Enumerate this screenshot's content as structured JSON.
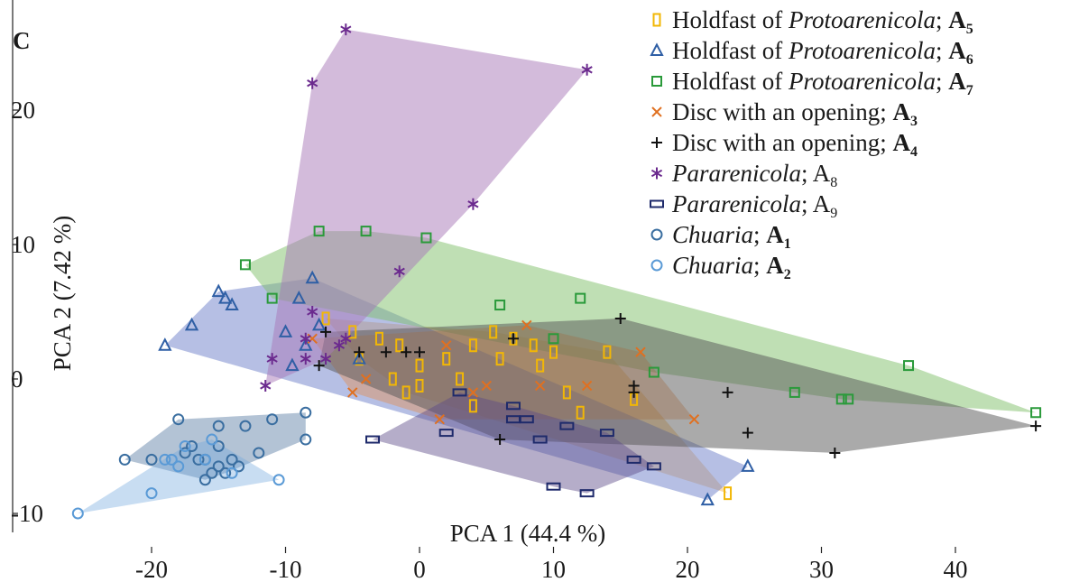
{
  "panel_label": "C",
  "chart_data": {
    "type": "scatter",
    "xlabel": "PCA 1 (44.4 %)",
    "ylabel": "PCA 2 (7.42 %)",
    "xlim": [
      -30,
      48
    ],
    "ylim": [
      -12,
      28
    ],
    "xticks": [
      -20,
      -10,
      0,
      10,
      20,
      30,
      40
    ],
    "yticks": [
      -10,
      0,
      10,
      20
    ],
    "grid": false,
    "legend_position": "top-right",
    "series": [
      {
        "id": "A5",
        "marker": "tall-rect",
        "color": "#f2b705",
        "label_parts": [
          {
            "t": "Holdfast of "
          },
          {
            "t": "Protoarenicola",
            "i": true
          },
          {
            "t": "; "
          },
          {
            "t": "A",
            "b": true
          },
          {
            "t": "5",
            "sub": true,
            "b": true
          }
        ],
        "hull_fill": "#f2a93b",
        "hull_opacity": 0.42,
        "points": [
          [
            -7,
            4.5
          ],
          [
            -5,
            3.5
          ],
          [
            -4.5,
            1.5
          ],
          [
            -3,
            3
          ],
          [
            -2,
            0
          ],
          [
            -1.5,
            2.5
          ],
          [
            -1,
            -1
          ],
          [
            0,
            1
          ],
          [
            0,
            -0.5
          ],
          [
            2,
            1.5
          ],
          [
            3,
            0
          ],
          [
            4,
            2.5
          ],
          [
            5.5,
            3.5
          ],
          [
            6,
            1.5
          ],
          [
            7,
            3
          ],
          [
            8.5,
            2.5
          ],
          [
            4,
            -2
          ],
          [
            9,
            1
          ],
          [
            10,
            2
          ],
          [
            11,
            -1
          ],
          [
            12,
            -2.5
          ],
          [
            16,
            -1.5
          ],
          [
            23,
            -8.5
          ],
          [
            14,
            2
          ]
        ]
      },
      {
        "id": "A6",
        "marker": "triangle",
        "color": "#2f5fa5",
        "label_parts": [
          {
            "t": "Holdfast of "
          },
          {
            "t": "Protoarenicola",
            "i": true
          },
          {
            "t": "; "
          },
          {
            "t": "A",
            "b": true
          },
          {
            "t": "6",
            "sub": true,
            "b": true
          }
        ],
        "hull_fill": "#6d7fc9",
        "hull_opacity": 0.5,
        "points": [
          [
            -19,
            2.5
          ],
          [
            -17,
            4
          ],
          [
            -15,
            6.5
          ],
          [
            -14.5,
            6
          ],
          [
            -14,
            5.5
          ],
          [
            -9,
            6
          ],
          [
            -8,
            7.5
          ],
          [
            -10,
            3.5
          ],
          [
            -9.5,
            1
          ],
          [
            -8.5,
            2.5
          ],
          [
            -7.5,
            4
          ],
          [
            -4.5,
            1.5
          ],
          [
            21.5,
            -9
          ],
          [
            24.5,
            -6.5
          ]
        ]
      },
      {
        "id": "A7",
        "marker": "square",
        "color": "#2a9a3a",
        "label_parts": [
          {
            "t": "Holdfast of "
          },
          {
            "t": "Protoarenicola",
            "i": true
          },
          {
            "t": "; "
          },
          {
            "t": "A",
            "b": true
          },
          {
            "t": "7",
            "sub": true,
            "b": true
          }
        ],
        "hull_fill": "#7fbf6a",
        "hull_opacity": 0.5,
        "points": [
          [
            -13,
            8.5
          ],
          [
            -11,
            6
          ],
          [
            -7.5,
            11
          ],
          [
            -4,
            11
          ],
          [
            0.5,
            10.5
          ],
          [
            6,
            5.5
          ],
          [
            10,
            3
          ],
          [
            12,
            6
          ],
          [
            17.5,
            0.5
          ],
          [
            28,
            -1
          ],
          [
            31.5,
            -1.5
          ],
          [
            32,
            -1.5
          ],
          [
            36.5,
            1
          ],
          [
            46,
            -2.5
          ]
        ]
      },
      {
        "id": "A3",
        "marker": "x",
        "color": "#e07020",
        "label_parts": [
          {
            "t": "Disc with an opening; "
          },
          {
            "t": "A",
            "b": true
          },
          {
            "t": "3",
            "sub": true,
            "b": true
          }
        ],
        "hull_fill": "#e8853a",
        "hull_opacity": 0.38,
        "points": [
          [
            -8,
            3
          ],
          [
            -5,
            -1
          ],
          [
            -4,
            0
          ],
          [
            1.5,
            -3
          ],
          [
            2,
            2.5
          ],
          [
            4,
            -1
          ],
          [
            5,
            -0.5
          ],
          [
            8,
            4
          ],
          [
            9,
            -0.5
          ],
          [
            12.5,
            -0.5
          ],
          [
            16.5,
            2
          ],
          [
            20.5,
            -3
          ]
        ]
      },
      {
        "id": "A4",
        "marker": "plus",
        "color": "#111111",
        "label_parts": [
          {
            "t": "Disc with an opening; "
          },
          {
            "t": "A",
            "b": true
          },
          {
            "t": "4",
            "sub": true,
            "b": true
          }
        ],
        "hull_fill": "#555555",
        "hull_opacity": 0.5,
        "points": [
          [
            -7.5,
            1
          ],
          [
            -7,
            3.5
          ],
          [
            -4.5,
            2
          ],
          [
            -2.5,
            2
          ],
          [
            -1,
            2
          ],
          [
            0,
            2
          ],
          [
            6,
            -4.5
          ],
          [
            7,
            3
          ],
          [
            15,
            4.5
          ],
          [
            16,
            -0.5
          ],
          [
            16,
            -1
          ],
          [
            23,
            -1
          ],
          [
            24.5,
            -4
          ],
          [
            31,
            -5.5
          ],
          [
            46,
            -3.5
          ]
        ]
      },
      {
        "id": "A8",
        "marker": "asterisk",
        "color": "#6b2a8e",
        "label_parts": [
          {
            "t": "Pararenicola",
            "i": true
          },
          {
            "t": "; A"
          },
          {
            "t": "8",
            "sub": true
          }
        ],
        "hull_fill": "#a778b8",
        "hull_opacity": 0.5,
        "points": [
          [
            -5.5,
            26
          ],
          [
            -8,
            22
          ],
          [
            12.5,
            23
          ],
          [
            4,
            13
          ],
          [
            -1.5,
            8
          ],
          [
            -8,
            5
          ],
          [
            -8.5,
            3
          ],
          [
            -6,
            2.5
          ],
          [
            -5.5,
            3
          ],
          [
            -11.5,
            -0.5
          ],
          [
            -11,
            1.5
          ],
          [
            -8.5,
            1.5
          ],
          [
            -7,
            1.5
          ]
        ]
      },
      {
        "id": "A9",
        "marker": "wide-rect",
        "color": "#1e2a6b",
        "label_parts": [
          {
            "t": "Pararenicola",
            "i": true
          },
          {
            "t": "; A"
          },
          {
            "t": "9",
            "sub": true
          }
        ],
        "hull_fill": "#5a4a88",
        "hull_opacity": 0.45,
        "points": [
          [
            -3.5,
            -4.5
          ],
          [
            2,
            -4
          ],
          [
            9,
            -4.5
          ],
          [
            10,
            -8
          ],
          [
            12.5,
            -8.5
          ],
          [
            16,
            -6
          ],
          [
            17.5,
            -6.5
          ],
          [
            7,
            -3
          ],
          [
            11,
            -3.5
          ],
          [
            14,
            -4
          ],
          [
            7,
            -2
          ],
          [
            8,
            -3
          ],
          [
            3,
            -1
          ]
        ]
      },
      {
        "id": "A1",
        "marker": "circle",
        "color": "#3a6ea0",
        "label_parts": [
          {
            "t": "Chuaria",
            "i": true
          },
          {
            "t": "; "
          },
          {
            "t": "A",
            "b": true
          },
          {
            "t": "1",
            "sub": true,
            "b": true
          }
        ],
        "hull_fill": "#4a6f9a",
        "hull_opacity": 0.42,
        "points": [
          [
            -22,
            -6
          ],
          [
            -20,
            -6
          ],
          [
            -18,
            -3
          ],
          [
            -17,
            -5
          ],
          [
            -16,
            -6
          ],
          [
            -15,
            -3.5
          ],
          [
            -15,
            -5
          ],
          [
            -14,
            -6
          ],
          [
            -13,
            -3.5
          ],
          [
            -12,
            -5.5
          ],
          [
            -11,
            -3
          ],
          [
            -8.5,
            -2.5
          ],
          [
            -8.5,
            -4.5
          ],
          [
            -14.5,
            -7
          ],
          [
            -15.5,
            -7
          ],
          [
            -16.5,
            -6
          ],
          [
            -17.5,
            -5.5
          ],
          [
            -15,
            -6.5
          ],
          [
            -13.5,
            -6.5
          ],
          [
            -16,
            -7.5
          ]
        ]
      },
      {
        "id": "A2",
        "marker": "circle",
        "color": "#5a9ad6",
        "label_parts": [
          {
            "t": "Chuaria",
            "i": true
          },
          {
            "t": "; "
          },
          {
            "t": "A",
            "b": true
          },
          {
            "t": "2",
            "sub": true,
            "b": true
          }
        ],
        "hull_fill": "#6ea6dc",
        "hull_opacity": 0.38,
        "points": [
          [
            -25.5,
            -10
          ],
          [
            -20,
            -8.5
          ],
          [
            -18.5,
            -6
          ],
          [
            -19,
            -6
          ],
          [
            -18,
            -6.5
          ],
          [
            -16,
            -6
          ],
          [
            -14,
            -7
          ],
          [
            -10.5,
            -7.5
          ],
          [
            -17.5,
            -5
          ],
          [
            -15.5,
            -4.5
          ]
        ]
      }
    ]
  }
}
